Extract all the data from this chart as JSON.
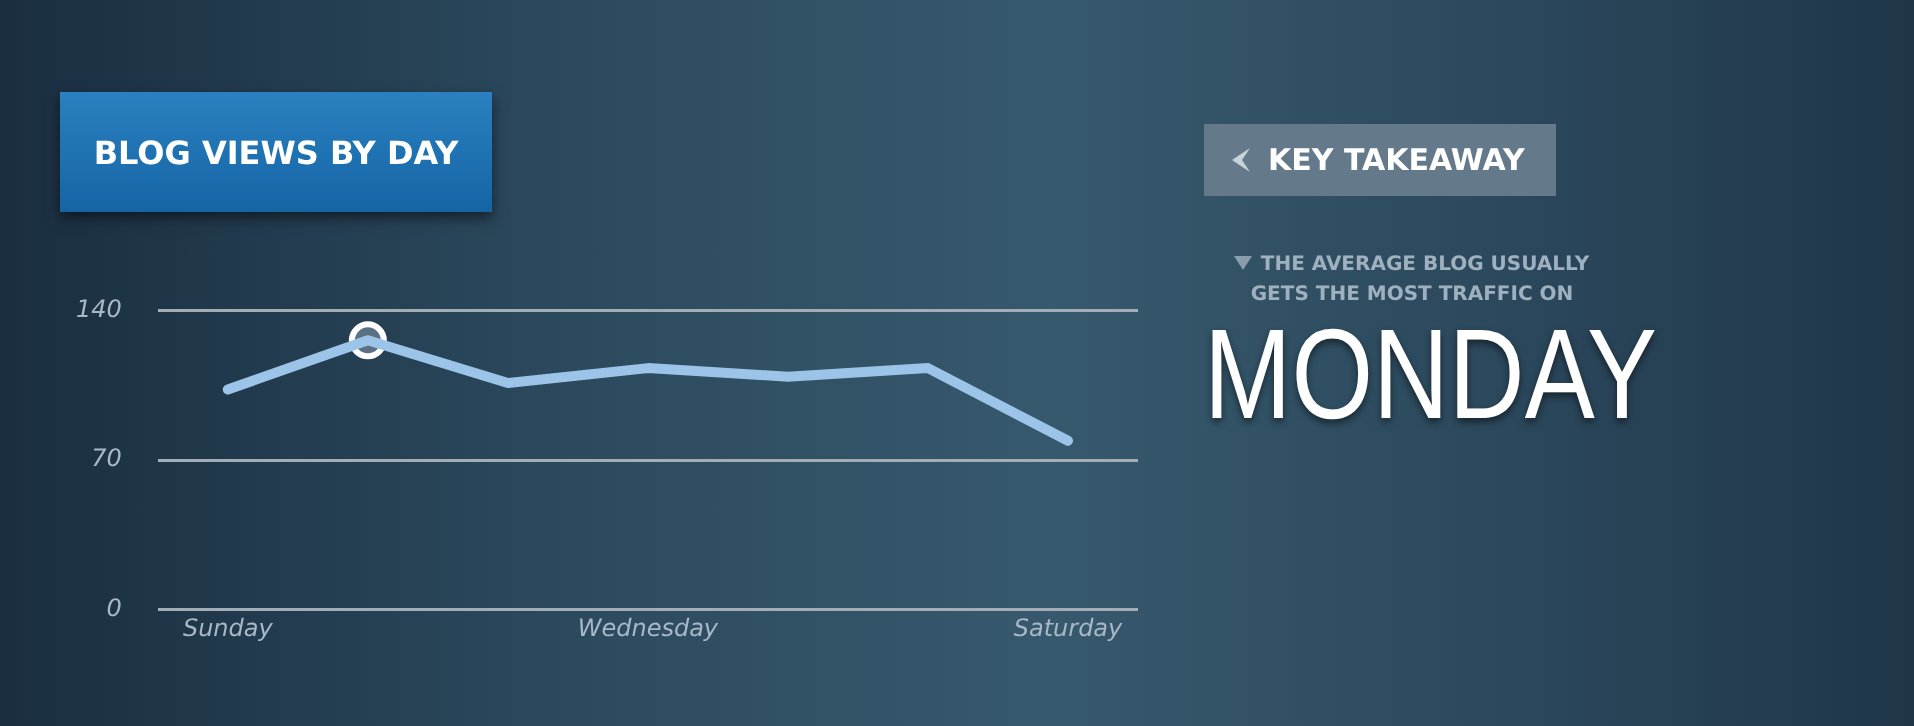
{
  "chart_data": {
    "type": "line",
    "title": "BLOG VIEWS BY DAY",
    "categories": [
      "Sunday",
      null,
      null,
      "Wednesday",
      null,
      null,
      "Saturday"
    ],
    "series": [
      {
        "color": "#9cc4e8",
        "marker": "none",
        "values": [
          103,
          126,
          106,
          113,
          109,
          113,
          79
        ]
      },
      {
        "type": "scatter",
        "color": "#5a7184",
        "marker": "circle",
        "values": [
          null,
          126,
          null,
          null,
          null,
          null,
          null
        ]
      }
    ],
    "ylim": [
      0,
      140
    ],
    "yticks": [
      0,
      70,
      140
    ],
    "grid": "y",
    "legend": false,
    "annotations": [
      "KEY TAKEAWAY",
      "THE AVERAGE BLOG USUALLY GETS THE MOST TRAFFIC ON",
      "MONDAY"
    ]
  }
}
